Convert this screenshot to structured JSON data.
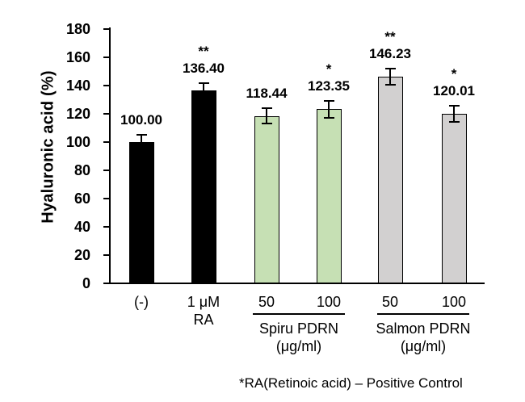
{
  "chart_data": {
    "type": "bar",
    "title": "",
    "ylabel": "Hyaluronic acid (%)",
    "xlabel": "",
    "ylim": [
      0,
      180
    ],
    "ytick_step": 20,
    "grid": false,
    "legend": "none",
    "yticks": [
      "0",
      "20",
      "40",
      "60",
      "80",
      "100",
      "120",
      "140",
      "160",
      "180"
    ],
    "categories": [
      "(-)",
      "1 μM RA",
      "Spiru PDRN 50 μg/ml",
      "Spiru PDRN 100 μg/ml",
      "Salmon PDRN 50 μg/ml",
      "Salmon PDRN 100 μg/ml"
    ],
    "values": [
      100.0,
      136.4,
      118.44,
      123.35,
      146.23,
      120.01
    ],
    "bars": [
      {
        "tick_label": "(-)",
        "tick_label2": "",
        "value": 100.0,
        "display": "100.00",
        "sig": "",
        "error": 5.0,
        "color": "#000000"
      },
      {
        "tick_label": "1 μM",
        "tick_label2": "RA",
        "value": 136.4,
        "display": "136.40",
        "sig": "**",
        "error": 5.5,
        "color": "#000000"
      },
      {
        "tick_label": "50",
        "tick_label2": "",
        "value": 118.44,
        "display": "118.44",
        "sig": "",
        "error": 5.5,
        "color": "#c6e0b4"
      },
      {
        "tick_label": "100",
        "tick_label2": "",
        "value": 123.35,
        "display": "123.35",
        "sig": "*",
        "error": 6.0,
        "color": "#c6e0b4"
      },
      {
        "tick_label": "50",
        "tick_label2": "",
        "value": 146.23,
        "display": "146.23",
        "sig": "**",
        "error": 5.5,
        "color": "#d2d0d0"
      },
      {
        "tick_label": "100",
        "tick_label2": "",
        "value": 120.01,
        "display": "120.01",
        "sig": "*",
        "error": 5.5,
        "color": "#d2d0d0"
      }
    ],
    "groups": [
      {
        "name": "Spiru PDRN",
        "unit": "(μg/ml)",
        "bar_indexes": [
          2,
          3
        ]
      },
      {
        "name": "Salmon PDRN",
        "unit": "(μg/ml)",
        "bar_indexes": [
          4,
          5
        ]
      }
    ],
    "footnote": "*RA(Retinoic acid) – Positive Control"
  },
  "colors": {
    "background": "#ffffff",
    "axis": "#000000",
    "text": "#000000",
    "bar_black": "#000000",
    "bar_green": "#c6e0b4",
    "bar_gray": "#d2d0d0"
  }
}
